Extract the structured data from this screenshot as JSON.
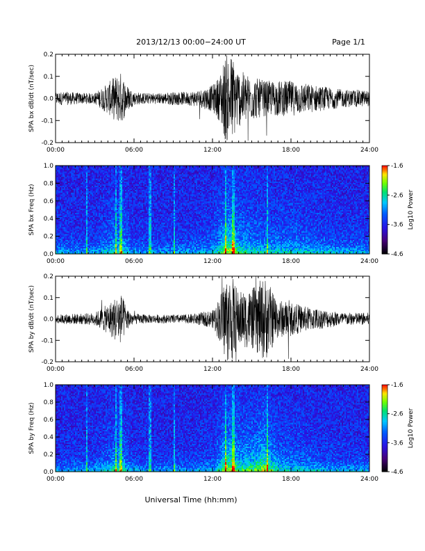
{
  "header": {
    "title": "2013/12/13  00:00−24:00 UT",
    "page": "Page 1/1"
  },
  "footer": {
    "xlabel": "Universal Time (hh:mm)"
  },
  "chart_data": [
    {
      "type": "line",
      "ylabel": "SPA bx dB/dt (nT/sec)",
      "xlim": [
        0,
        24
      ],
      "ylim": [
        -0.2,
        0.2
      ],
      "x_ticks": [
        "00:00",
        "06:00",
        "12:00",
        "18:00",
        "24:00"
      ],
      "y_ticks": [
        "-0.2",
        "-0.1",
        "0.0",
        "0.1",
        "0.2"
      ],
      "series": [
        {
          "x": [
            0,
            1,
            2,
            3,
            4,
            4.5,
            5,
            5.5,
            6,
            7,
            8,
            9,
            10,
            11,
            12,
            12.5,
            13,
            13.5,
            14,
            15,
            16,
            17,
            18,
            19,
            20,
            21,
            22,
            23,
            24
          ],
          "values": [
            0.03,
            0.03,
            0.025,
            0.025,
            0.07,
            0.1,
            0.12,
            0.06,
            0.03,
            0.025,
            0.025,
            0.03,
            0.03,
            0.04,
            0.06,
            0.1,
            0.2,
            0.2,
            0.13,
            0.1,
            0.08,
            0.08,
            0.08,
            0.07,
            0.06,
            0.05,
            0.04,
            0.04,
            0.035
          ]
        }
      ]
    },
    {
      "type": "heatmap",
      "ylabel": "SPA bx Freq (Hz)",
      "xlim": [
        0,
        24
      ],
      "ylim": [
        0.0,
        1.0
      ],
      "x_ticks": [
        "00:00",
        "06:00",
        "12:00",
        "18:00",
        "24:00"
      ],
      "y_ticks": [
        "0.0",
        "0.2",
        "0.4",
        "0.6",
        "0.8",
        "1.0"
      ],
      "colorbar_label": "Log10 Power",
      "colorbar_ticks": [
        "-1.6",
        "-2.6",
        "-3.6",
        "-4.6"
      ],
      "colorbar_range": [
        -4.6,
        -1.6
      ]
    },
    {
      "type": "line",
      "ylabel": "SPA by dB/dt (nT/sec)",
      "xlim": [
        0,
        24
      ],
      "ylim": [
        -0.2,
        0.2
      ],
      "x_ticks": [
        "00:00",
        "06:00",
        "12:00",
        "18:00",
        "24:00"
      ],
      "y_ticks": [
        "-0.2",
        "-0.1",
        "0.0",
        "0.1",
        "0.2"
      ],
      "series": [
        {
          "x": [
            0,
            1,
            2,
            3,
            4,
            4.5,
            5,
            5.5,
            6,
            7,
            8,
            9,
            10,
            11,
            12,
            12.5,
            13,
            13.5,
            14,
            15,
            16,
            17,
            18,
            19,
            20,
            21,
            22,
            23,
            24
          ],
          "values": [
            0.02,
            0.025,
            0.025,
            0.03,
            0.07,
            0.1,
            0.12,
            0.05,
            0.025,
            0.02,
            0.02,
            0.02,
            0.02,
            0.03,
            0.04,
            0.1,
            0.2,
            0.2,
            0.13,
            0.14,
            0.2,
            0.09,
            0.08,
            0.06,
            0.05,
            0.04,
            0.03,
            0.03,
            0.03
          ]
        }
      ]
    },
    {
      "type": "heatmap",
      "ylabel": "SPA by Freq (Hz)",
      "xlim": [
        0,
        24
      ],
      "ylim": [
        0.0,
        1.0
      ],
      "x_ticks": [
        "00:00",
        "06:00",
        "12:00",
        "18:00",
        "24:00"
      ],
      "y_ticks": [
        "0.0",
        "0.2",
        "0.4",
        "0.6",
        "0.8",
        "1.0"
      ],
      "colorbar_label": "Log10 Power",
      "colorbar_ticks": [
        "-1.6",
        "-2.6",
        "-3.6",
        "-4.6"
      ],
      "colorbar_range": [
        -4.6,
        -1.6
      ]
    }
  ]
}
